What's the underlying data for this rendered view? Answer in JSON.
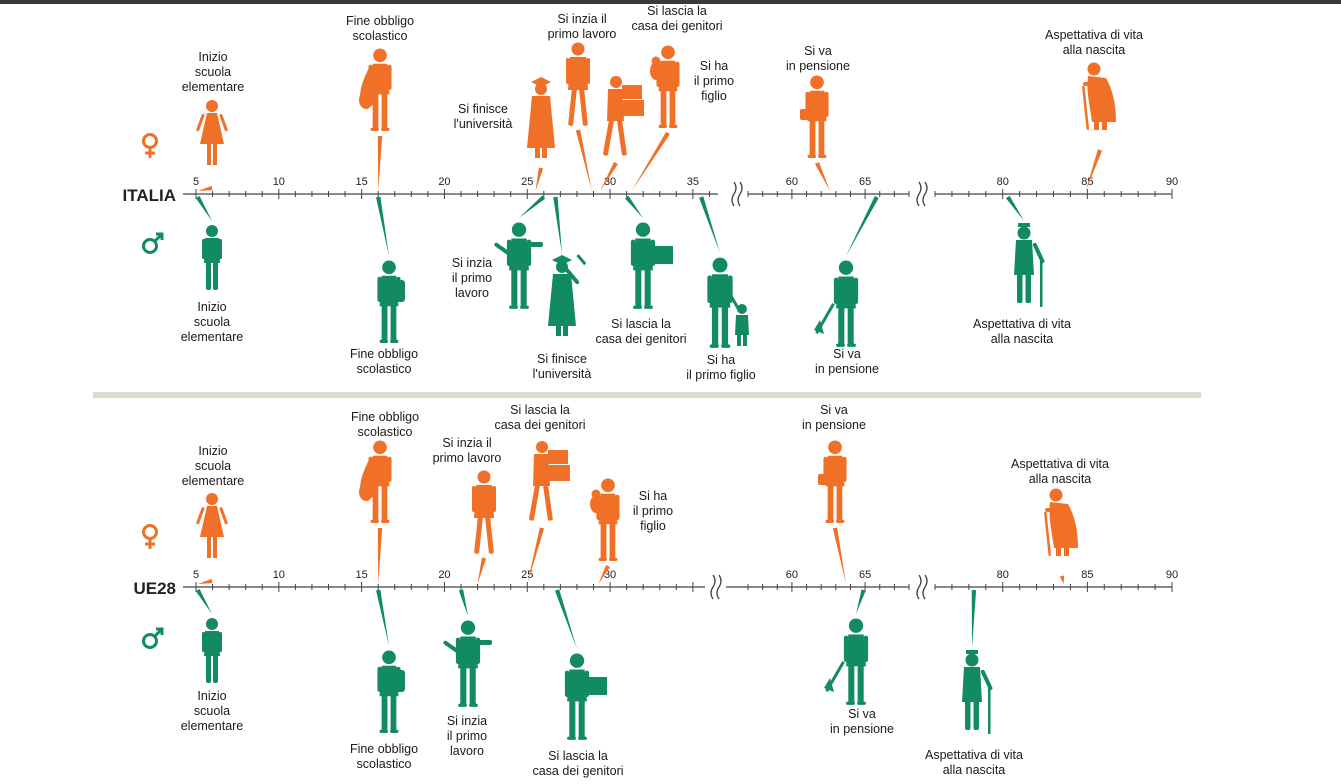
{
  "colors": {
    "female": "#f07028",
    "male": "#128a62",
    "axis": "#444444",
    "divider": "#dcdccb"
  },
  "icons": {
    "female": "female-symbol-icon",
    "male": "male-symbol-icon"
  },
  "panels": [
    {
      "country": "ITALIA",
      "ticks": [
        "5",
        "10",
        "15",
        "20",
        "25",
        "30",
        "35",
        "60",
        "65",
        "80",
        "85",
        "90"
      ],
      "female": [
        {
          "age": 5.1,
          "figure": "girl-icon",
          "lines": [
            "Inizio",
            "scuola",
            "elementare"
          ]
        },
        {
          "age": 16,
          "figure": "teen-girl-bag-icon",
          "lines": [
            "Fine obbligo",
            "scolastico"
          ]
        },
        {
          "age": 25.5,
          "figure": "graduate-woman-icon",
          "lines": [
            "Si finisce",
            "l'università"
          ]
        },
        {
          "age": 28.9,
          "figure": "woman-walking-icon",
          "lines": [
            "Si inzia il",
            "primo lavoro"
          ]
        },
        {
          "age": 29.4,
          "figure": "woman-carrying-boxes-icon",
          "lines": [
            "Si lascia la",
            "casa dei genitori"
          ]
        },
        {
          "age": 31.3,
          "figure": "mother-with-baby-icon",
          "lines": [
            "Si ha",
            "il primo",
            "figlio"
          ]
        },
        {
          "age": 62.6,
          "figure": "woman-with-handbag-icon",
          "lines": [
            "Si va",
            "in pensione"
          ]
        },
        {
          "age": 84.9,
          "figure": "elderly-woman-cane-icon",
          "lines": [
            "Aspettativa di vita",
            "alla nascita"
          ]
        }
      ],
      "male": [
        {
          "age": 5.1,
          "figure": "boy-icon",
          "lines": [
            "Inizio",
            "scuola",
            "elementare"
          ]
        },
        {
          "age": 16,
          "figure": "teen-boy-backpack-icon",
          "lines": [
            "Fine obbligo",
            "scolastico"
          ]
        },
        {
          "age": 26,
          "figure": "man-gesturing-icon",
          "lines": [
            "Si inzia",
            "il primo",
            "lavoro"
          ]
        },
        {
          "age": 26.7,
          "figure": "graduate-man-icon",
          "lines": [
            "Si finisce",
            "l'università"
          ]
        },
        {
          "age": 31,
          "figure": "man-carrying-box-icon",
          "lines": [
            "Si lascia la",
            "casa dei genitori"
          ]
        },
        {
          "age": 35.5,
          "figure": "father-with-child-icon",
          "lines": [
            "Si ha",
            "il primo figlio"
          ]
        },
        {
          "age": 65.8,
          "figure": "man-with-umbrella-icon",
          "lines": [
            "Si va",
            "in pensione"
          ]
        },
        {
          "age": 80.3,
          "figure": "elderly-man-cane-icon",
          "lines": [
            "Aspettativa di vita",
            "alla nascita"
          ]
        }
      ]
    },
    {
      "country": "UE28",
      "ticks": [
        "5",
        "10",
        "15",
        "20",
        "25",
        "30",
        "60",
        "65",
        "80",
        "85",
        "90"
      ],
      "female": [
        {
          "age": 5.1,
          "figure": "girl-icon",
          "lines": [
            "Inizio",
            "scuola",
            "elementare"
          ]
        },
        {
          "age": 16,
          "figure": "teen-girl-bag-icon",
          "lines": [
            "Fine obbligo",
            "scolastico"
          ]
        },
        {
          "age": 22,
          "figure": "woman-walking-icon",
          "lines": [
            "Si inzia il",
            "primo lavoro"
          ]
        },
        {
          "age": 25,
          "figure": "woman-carrying-boxes-icon",
          "lines": [
            "Si lascia la",
            "casa dei genitori"
          ]
        },
        {
          "age": 29.3,
          "figure": "mother-with-baby-icon",
          "lines": [
            "Si ha",
            "il primo",
            "figlio"
          ]
        },
        {
          "age": 63.7,
          "figure": "woman-with-handbag-icon",
          "lines": [
            "Si va",
            "in pensione"
          ]
        },
        {
          "age": 83.6,
          "figure": "elderly-woman-cane-icon",
          "lines": [
            "Aspettativa di vita",
            "alla nascita"
          ]
        }
      ],
      "male": [
        {
          "age": 5.1,
          "figure": "boy-icon",
          "lines": [
            "Inizio",
            "scuola",
            "elementare"
          ]
        },
        {
          "age": 16,
          "figure": "teen-boy-backpack-icon",
          "lines": [
            "Fine obbligo",
            "scolastico"
          ]
        },
        {
          "age": 21,
          "figure": "man-gesturing-icon",
          "lines": [
            "Si inzia",
            "il primo",
            "lavoro"
          ]
        },
        {
          "age": 26.8,
          "figure": "man-carrying-box-icon",
          "lines": [
            "Si lascia la",
            "casa dei genitori"
          ]
        },
        {
          "age": 64.9,
          "figure": "man-with-umbrella-icon",
          "lines": [
            "Si va",
            "in pensione"
          ]
        },
        {
          "age": 78.3,
          "figure": "elderly-man-cane-icon",
          "lines": [
            "Aspettativa di vita",
            "alla nascita"
          ]
        }
      ]
    }
  ]
}
